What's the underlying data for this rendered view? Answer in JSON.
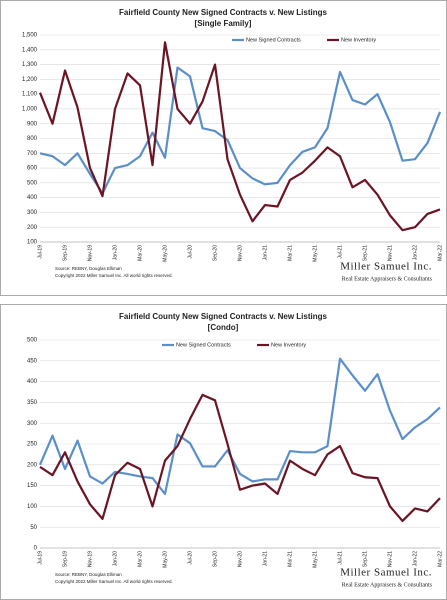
{
  "chart_data": [
    {
      "type": "line",
      "title": "Fairfield County New Signed Contracts v. New Listings",
      "subtitle": "[Single Family]",
      "categories": [
        "Jul-19",
        null,
        "Sep-19",
        null,
        "Nov-19",
        null,
        "Jan-20",
        null,
        "Mar-20",
        null,
        "May-20",
        null,
        "Jul-20",
        null,
        "Sep-20",
        null,
        "Nov-20",
        null,
        "Jan-21",
        null,
        "Mar-21",
        null,
        "May-21",
        null,
        "Jul-21",
        null,
        "Sep-21",
        null,
        "Nov-21",
        null,
        "Jan-22",
        null,
        "Mar-22"
      ],
      "series": [
        {
          "name": "New Signed Contracts",
          "color": "#5b8fc9",
          "values": [
            700,
            680,
            620,
            700,
            560,
            430,
            600,
            620,
            680,
            840,
            670,
            1280,
            1220,
            870,
            850,
            790,
            600,
            530,
            490,
            500,
            620,
            710,
            740,
            870,
            1250,
            1060,
            1030,
            1100,
            910,
            650,
            660,
            770,
            980
          ]
        },
        {
          "name": "New Inventory",
          "color": "#6b1424",
          "values": [
            1110,
            900,
            1260,
            1010,
            600,
            410,
            1000,
            1240,
            1160,
            620,
            1450,
            1000,
            900,
            1050,
            1300,
            660,
            420,
            240,
            350,
            340,
            520,
            570,
            650,
            740,
            680,
            470,
            520,
            420,
            280,
            180,
            200,
            290,
            320
          ]
        }
      ],
      "ylim": [
        100,
        1500
      ],
      "yticks": [
        100,
        200,
        300,
        400,
        500,
        600,
        700,
        800,
        900,
        {
          "value": 1000,
          "label": "1,000"
        },
        {
          "value": 1100,
          "label": "1,100"
        },
        {
          "value": 1200,
          "label": "1,200"
        },
        {
          "value": 1300,
          "label": "1,300"
        },
        {
          "value": 1400,
          "label": "1,400"
        },
        {
          "value": 1500,
          "label": "1,500"
        }
      ],
      "grid": true,
      "legend": "top",
      "source": "Source: REBNY, Douglas Elliman",
      "copyright": "Copyright 2022 Miller Samuel Inc. All world rights reserved.",
      "brand": "Miller Samuel Inc.",
      "tagline": "Real Estate Appraisers & Consultants"
    },
    {
      "type": "line",
      "title": "Fairfield County New Signed Contracts v. New Listings",
      "subtitle": "[Condo]",
      "categories": [
        "Jul-19",
        null,
        "Sep-19",
        null,
        "Nov-19",
        null,
        "Jan-20",
        null,
        "Mar-20",
        null,
        "May-20",
        null,
        "Jul-20",
        null,
        "Sep-20",
        null,
        "Nov-20",
        null,
        "Jan-21",
        null,
        "Mar-21",
        null,
        "May-21",
        null,
        "Jul-21",
        null,
        "Sep-21",
        null,
        "Nov-21",
        null,
        "Jan-22",
        null,
        "Mar-22"
      ],
      "series": [
        {
          "name": "New Signed Contracts",
          "color": "#5b8fc9",
          "values": [
            200,
            270,
            190,
            258,
            172,
            155,
            183,
            178,
            172,
            168,
            130,
            273,
            252,
            196,
            196,
            235,
            178,
            160,
            165,
            165,
            233,
            230,
            230,
            245,
            455,
            415,
            378,
            418,
            330,
            262,
            290,
            310,
            338
          ]
        },
        {
          "name": "New Inventory",
          "color": "#6b1424",
          "values": [
            195,
            175,
            230,
            160,
            105,
            70,
            175,
            205,
            190,
            100,
            210,
            245,
            310,
            368,
            355,
            250,
            140,
            150,
            155,
            130,
            210,
            190,
            175,
            225,
            245,
            180,
            170,
            168,
            100,
            65,
            95,
            88,
            120
          ]
        }
      ],
      "ylim": [
        0,
        500
      ],
      "yticks": [
        0,
        50,
        100,
        150,
        200,
        250,
        300,
        350,
        400,
        450,
        500
      ],
      "grid": true,
      "legend": "top",
      "source": "Source: REBNY, Douglas Elliman",
      "copyright": "Copyright 2022 Miller Samuel Inc. All world rights reserved.",
      "brand": "Miller Samuel Inc.",
      "tagline": "Real Estate Appraisers & Consultants"
    }
  ]
}
